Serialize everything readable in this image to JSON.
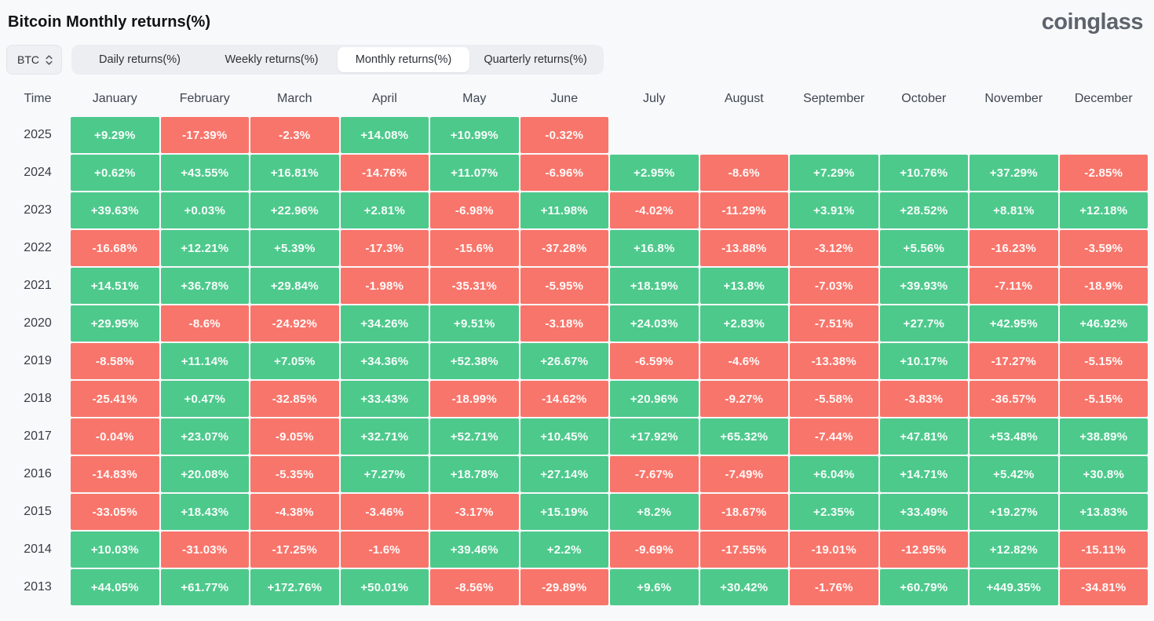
{
  "header": {
    "title": "Bitcoin Monthly returns(%)",
    "logo": "coinglass"
  },
  "toolbar": {
    "symbol_select": {
      "value": "BTC"
    },
    "tabs": [
      {
        "label": "Daily returns(%)",
        "active": false
      },
      {
        "label": "Weekly returns(%)",
        "active": false
      },
      {
        "label": "Monthly returns(%)",
        "active": true
      },
      {
        "label": "Quarterly returns(%)",
        "active": false
      }
    ]
  },
  "colors": {
    "positive": "#4DC98C",
    "negative": "#F8756B"
  },
  "chart_data": {
    "type": "heatmap",
    "title": "Bitcoin Monthly returns(%)",
    "row_header": "Time",
    "columns": [
      "January",
      "February",
      "March",
      "April",
      "May",
      "June",
      "July",
      "August",
      "September",
      "October",
      "November",
      "December"
    ],
    "positive_color": "#4DC98C",
    "negative_color": "#F8756B",
    "rows": [
      {
        "year": "2025",
        "values": [
          "+9.29%",
          "-17.39%",
          "-2.3%",
          "+14.08%",
          "+10.99%",
          "-0.32%",
          null,
          null,
          null,
          null,
          null,
          null
        ]
      },
      {
        "year": "2024",
        "values": [
          "+0.62%",
          "+43.55%",
          "+16.81%",
          "-14.76%",
          "+11.07%",
          "-6.96%",
          "+2.95%",
          "-8.6%",
          "+7.29%",
          "+10.76%",
          "+37.29%",
          "-2.85%"
        ]
      },
      {
        "year": "2023",
        "values": [
          "+39.63%",
          "+0.03%",
          "+22.96%",
          "+2.81%",
          "-6.98%",
          "+11.98%",
          "-4.02%",
          "-11.29%",
          "+3.91%",
          "+28.52%",
          "+8.81%",
          "+12.18%"
        ]
      },
      {
        "year": "2022",
        "values": [
          "-16.68%",
          "+12.21%",
          "+5.39%",
          "-17.3%",
          "-15.6%",
          "-37.28%",
          "+16.8%",
          "-13.88%",
          "-3.12%",
          "+5.56%",
          "-16.23%",
          "-3.59%"
        ]
      },
      {
        "year": "2021",
        "values": [
          "+14.51%",
          "+36.78%",
          "+29.84%",
          "-1.98%",
          "-35.31%",
          "-5.95%",
          "+18.19%",
          "+13.8%",
          "-7.03%",
          "+39.93%",
          "-7.11%",
          "-18.9%"
        ]
      },
      {
        "year": "2020",
        "values": [
          "+29.95%",
          "-8.6%",
          "-24.92%",
          "+34.26%",
          "+9.51%",
          "-3.18%",
          "+24.03%",
          "+2.83%",
          "-7.51%",
          "+27.7%",
          "+42.95%",
          "+46.92%"
        ]
      },
      {
        "year": "2019",
        "values": [
          "-8.58%",
          "+11.14%",
          "+7.05%",
          "+34.36%",
          "+52.38%",
          "+26.67%",
          "-6.59%",
          "-4.6%",
          "-13.38%",
          "+10.17%",
          "-17.27%",
          "-5.15%"
        ]
      },
      {
        "year": "2018",
        "values": [
          "-25.41%",
          "+0.47%",
          "-32.85%",
          "+33.43%",
          "-18.99%",
          "-14.62%",
          "+20.96%",
          "-9.27%",
          "-5.58%",
          "-3.83%",
          "-36.57%",
          "-5.15%"
        ]
      },
      {
        "year": "2017",
        "values": [
          "-0.04%",
          "+23.07%",
          "-9.05%",
          "+32.71%",
          "+52.71%",
          "+10.45%",
          "+17.92%",
          "+65.32%",
          "-7.44%",
          "+47.81%",
          "+53.48%",
          "+38.89%"
        ]
      },
      {
        "year": "2016",
        "values": [
          "-14.83%",
          "+20.08%",
          "-5.35%",
          "+7.27%",
          "+18.78%",
          "+27.14%",
          "-7.67%",
          "-7.49%",
          "+6.04%",
          "+14.71%",
          "+5.42%",
          "+30.8%"
        ]
      },
      {
        "year": "2015",
        "values": [
          "-33.05%",
          "+18.43%",
          "-4.38%",
          "-3.46%",
          "-3.17%",
          "+15.19%",
          "+8.2%",
          "-18.67%",
          "+2.35%",
          "+33.49%",
          "+19.27%",
          "+13.83%"
        ]
      },
      {
        "year": "2014",
        "values": [
          "+10.03%",
          "-31.03%",
          "-17.25%",
          "-1.6%",
          "+39.46%",
          "+2.2%",
          "-9.69%",
          "-17.55%",
          "-19.01%",
          "-12.95%",
          "+12.82%",
          "-15.11%"
        ]
      },
      {
        "year": "2013",
        "values": [
          "+44.05%",
          "+61.77%",
          "+172.76%",
          "+50.01%",
          "-8.56%",
          "-29.89%",
          "+9.6%",
          "+30.42%",
          "-1.76%",
          "+60.79%",
          "+449.35%",
          "-34.81%"
        ]
      }
    ]
  }
}
